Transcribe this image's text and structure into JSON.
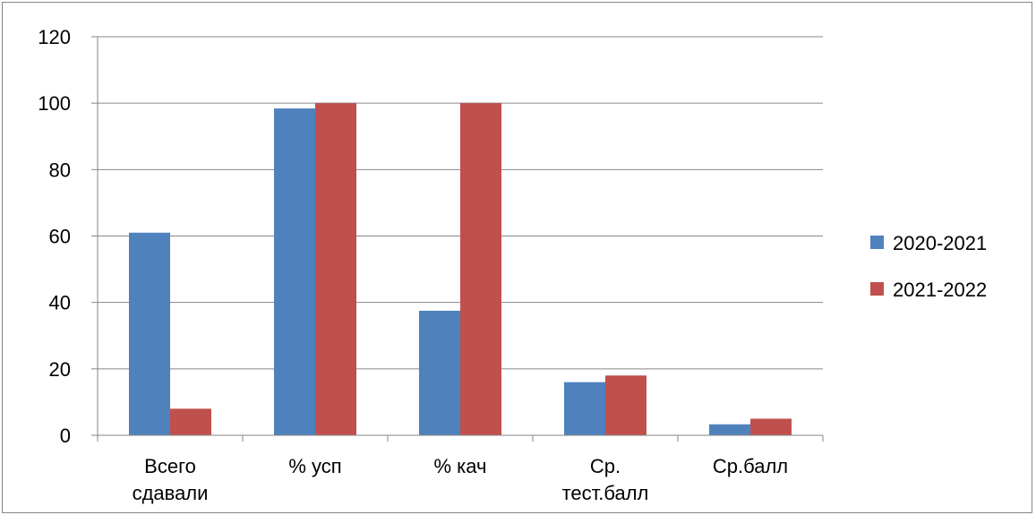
{
  "chart_data": {
    "type": "bar",
    "categories": [
      [
        "Всего",
        "сдавали"
      ],
      [
        "% усп"
      ],
      [
        "% кач"
      ],
      [
        "Ср.",
        "тест.балл"
      ],
      [
        "Ср.балл"
      ]
    ],
    "series": [
      {
        "name": "2020-2021",
        "color": "#4F81BD",
        "values": [
          61,
          98.4,
          37.5,
          16,
          3.3
        ]
      },
      {
        "name": "2021-2022",
        "color": "#C0504D",
        "values": [
          8,
          100,
          100,
          18,
          5
        ]
      }
    ],
    "ylim": [
      0,
      120
    ],
    "yticks": [
      0,
      20,
      40,
      60,
      80,
      100,
      120
    ],
    "grid": true,
    "legend": "right"
  }
}
